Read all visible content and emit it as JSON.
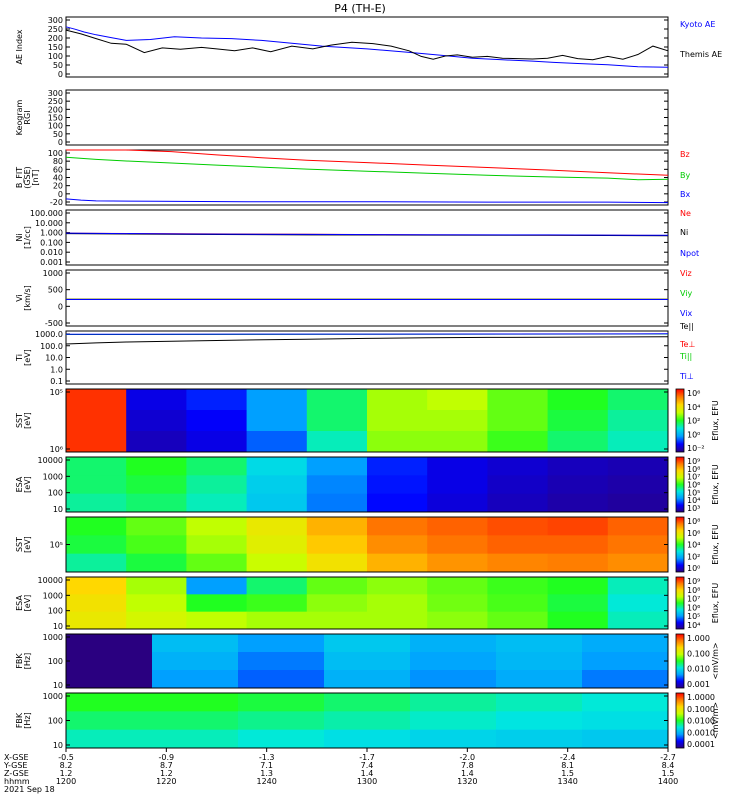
{
  "title": "P4 (TH-E)",
  "footer": {
    "row_labels": [
      "X-GSE",
      "Y-GSE",
      "Z-GSE",
      "hhmm",
      "2021 Sep 18"
    ],
    "columns": [
      {
        "x": "-0.5",
        "y": "8.2",
        "z": "1.2",
        "t": "1200"
      },
      {
        "x": "-0.9",
        "y": "8.7",
        "z": "1.2",
        "t": "1220"
      },
      {
        "x": "-1.3",
        "y": "7.1",
        "z": "1.3",
        "t": "1240"
      },
      {
        "x": "-1.7",
        "y": "7.4",
        "z": "1.4",
        "t": "1300"
      },
      {
        "x": "-2.0",
        "y": "7.8",
        "z": "1.4",
        "t": "1320"
      },
      {
        "x": "-2.4",
        "y": "8.1",
        "z": "1.5",
        "t": "1340"
      },
      {
        "x": "-2.7",
        "y": "8.4",
        "z": "1.5",
        "t": "1400"
      }
    ]
  },
  "colors": {
    "blue": "#0000ff",
    "black": "#000000",
    "red": "#ff0000",
    "green": "#00cc00",
    "cbar": [
      "#2a0080",
      "#0000ff",
      "#00a0ff",
      "#00e8e0",
      "#20ff20",
      "#c8ff00",
      "#ffd800",
      "#ff7a00",
      "#ff0000"
    ]
  },
  "chart_data": [
    {
      "type": "line",
      "ylabel": "AE Index",
      "yticks": [
        "300",
        "250",
        "200",
        "150",
        "100",
        "50",
        "0"
      ],
      "ylim": [
        0,
        320
      ],
      "legend": [
        "Kyoto AE",
        "Themis AE"
      ],
      "series": [
        {
          "name": "Kyoto AE",
          "x": [
            1200,
            1203,
            1206,
            1210,
            1215,
            1220,
            1228,
            1236,
            1245,
            1255,
            1265,
            1275,
            1285,
            1300,
            1315,
            1325,
            1335,
            1345,
            1355,
            1362,
            1370,
            1380,
            1390,
            1400
          ],
          "values": [
            268,
            255,
            240,
            225,
            210,
            195,
            200,
            215,
            208,
            205,
            195,
            180,
            165,
            150,
            130,
            115,
            100,
            92,
            85,
            78,
            72,
            65,
            55,
            52
          ]
        },
        {
          "name": "Themis AE",
          "x": [
            1200,
            1205,
            1210,
            1215,
            1220,
            1226,
            1232,
            1238,
            1245,
            1250,
            1256,
            1262,
            1268,
            1275,
            1282,
            1288,
            1295,
            1302,
            1308,
            1314,
            1318,
            1322,
            1326,
            1330,
            1335,
            1340,
            1345,
            1350,
            1355,
            1360,
            1365,
            1370,
            1375,
            1380,
            1385,
            1390,
            1395,
            1400
          ],
          "values": [
            250,
            230,
            205,
            180,
            175,
            130,
            155,
            148,
            158,
            150,
            140,
            155,
            135,
            165,
            150,
            170,
            185,
            178,
            165,
            140,
            110,
            95,
            112,
            118,
            105,
            110,
            100,
            98,
            96,
            100,
            115,
            98,
            92,
            110,
            95,
            120,
            165,
            140
          ]
        }
      ]
    },
    {
      "type": "heatmap",
      "ylabel": "Keogram",
      "ylabel2": "RGI",
      "yticks": [
        "300",
        "250",
        "200",
        "150",
        "100",
        "50",
        "0"
      ],
      "values": []
    },
    {
      "type": "line",
      "ylabel": "B_FIT",
      "ylabel2": "(GSE)",
      "ylabel3": "[nT]",
      "yticks": [
        "100",
        "80",
        "60",
        "40",
        "20",
        "0",
        "-20"
      ],
      "ylim": [
        -30,
        105
      ],
      "legend": [
        "Bz",
        "By",
        "Bx"
      ],
      "series": [
        {
          "name": "Bz",
          "x": [
            1200,
            1210,
            1220,
            1235,
            1250,
            1265,
            1280,
            1300,
            1320,
            1340,
            1360,
            1380,
            1400
          ],
          "values": [
            110,
            108,
            105,
            101,
            93,
            86,
            80,
            74,
            68,
            62,
            56,
            49,
            43
          ]
        },
        {
          "name": "By",
          "x": [
            1200,
            1210,
            1220,
            1235,
            1250,
            1265,
            1280,
            1300,
            1320,
            1340,
            1360,
            1380,
            1390,
            1400
          ],
          "values": [
            87,
            82,
            78,
            73,
            68,
            63,
            58,
            53,
            48,
            43,
            39,
            36,
            32,
            33
          ]
        },
        {
          "name": "Bx",
          "x": [
            1200,
            1205,
            1210,
            1230,
            1260,
            1300,
            1340,
            1380,
            1400
          ],
          "values": [
            -15,
            -18,
            -20,
            -21,
            -22,
            -22,
            -23,
            -23,
            -24
          ]
        }
      ]
    },
    {
      "type": "line",
      "ylabel": "Ni",
      "ylabel2": "[1/cc]",
      "yticks": [
        "100.000",
        "10.000",
        "1.000",
        "0.100",
        "0.010",
        "0.001"
      ],
      "ylim": [
        0.001,
        100
      ],
      "legend": [
        "Ne",
        "Ni",
        "Npot"
      ],
      "series": [
        {
          "name": "Ne",
          "x": [
            1200,
            1240,
            1280,
            1320,
            1360,
            1400
          ],
          "values": [
            0.78,
            0.68,
            0.62,
            0.55,
            0.52,
            0.48
          ]
        },
        {
          "name": "Ni",
          "x": [
            1200,
            1240,
            1280,
            1320,
            1360,
            1400
          ],
          "values": [
            0.72,
            0.6,
            0.55,
            0.52,
            0.5,
            0.46
          ]
        },
        {
          "name": "Npot",
          "x": [
            1200,
            1240,
            1280,
            1320,
            1360,
            1400
          ],
          "values": [
            0.8,
            0.66,
            0.6,
            0.56,
            0.54,
            0.5
          ]
        }
      ]
    },
    {
      "type": "line",
      "ylabel": "Vi",
      "ylabel2": "[km/s]",
      "yticks": [
        "1000",
        "500",
        "0",
        "-500"
      ],
      "ylim": [
        -1000,
        1100
      ],
      "legend": [
        "Viz",
        "Viy",
        "Vix"
      ],
      "series": [
        {
          "name": "Viz",
          "x": [
            1200,
            1300,
            1400
          ],
          "values": [
            10,
            10,
            10
          ]
        },
        {
          "name": "Viy",
          "x": [
            1200,
            1300,
            1400
          ],
          "values": [
            0,
            0,
            0
          ]
        },
        {
          "name": "Vix",
          "x": [
            1200,
            1300,
            1400
          ],
          "values": [
            -5,
            -5,
            -5
          ]
        }
      ]
    },
    {
      "type": "line",
      "ylabel": "Ti",
      "ylabel2": "[eV]",
      "yticks": [
        "1000.0",
        "100.0",
        "10.0",
        "1.0",
        "0.1"
      ],
      "ylim": [
        0.05,
        10000
      ],
      "legend": [
        "Te||",
        "Te⊥",
        "Ti||",
        "Ti⊥"
      ],
      "series": [
        {
          "name": "Te||",
          "x": [
            1200,
            1210,
            1220,
            1240,
            1260,
            1280,
            1300,
            1320,
            1340,
            1360,
            1380,
            1400
          ],
          "values": [
            500,
            650,
            800,
            1000,
            1250,
            1500,
            1800,
            2100,
            2300,
            2400,
            2500,
            2600
          ]
        },
        {
          "name": "Ti||",
          "x": [
            1200,
            1300,
            1400
          ],
          "values": [
            4500,
            4700,
            5000
          ]
        },
        {
          "name": "Ti⊥",
          "x": [
            1200,
            1300,
            1400
          ],
          "values": [
            4700,
            4900,
            5200
          ]
        }
      ]
    },
    {
      "type": "heatmap",
      "ylabel": "SST",
      "ylabel2": "[eV]",
      "yticks": [
        "10⁵",
        "10⁶"
      ],
      "cbar_label": "Eflux, EFU",
      "cbar_ticks": [
        "10⁶",
        "10⁴",
        "10²",
        "10⁰",
        "10⁻²"
      ],
      "values": [
        [
          0.95,
          0.1,
          0.15,
          0.25,
          0.45,
          0.6,
          0.62,
          0.55,
          0.5,
          0.45
        ],
        [
          0.95,
          0.08,
          0.12,
          0.25,
          0.45,
          0.6,
          0.6,
          0.55,
          0.48,
          0.42
        ],
        [
          0.95,
          0.06,
          0.1,
          0.2,
          0.4,
          0.58,
          0.58,
          0.52,
          0.45,
          0.4
        ]
      ]
    },
    {
      "type": "heatmap",
      "ylabel": "ESA",
      "ylabel2": "[eV]",
      "yticks": [
        "10000",
        "1000",
        "100",
        "10"
      ],
      "cbar_label": "Eflux, EFU",
      "cbar_ticks": [
        "10⁹",
        "10⁸",
        "10⁷",
        "10⁶",
        "10⁵",
        "10⁴",
        "10³"
      ],
      "values": [
        [
          0.45,
          0.5,
          0.45,
          0.35,
          0.25,
          0.15,
          0.1,
          0.08,
          0.06,
          0.05
        ],
        [
          0.45,
          0.48,
          0.42,
          0.33,
          0.23,
          0.14,
          0.1,
          0.07,
          0.05,
          0.04
        ],
        [
          0.42,
          0.45,
          0.4,
          0.32,
          0.22,
          0.13,
          0.09,
          0.06,
          0.04,
          0.03
        ]
      ]
    },
    {
      "type": "heatmap",
      "ylabel": "SST",
      "ylabel2": "[eV]",
      "yticks": [
        "10⁵"
      ],
      "cbar_label": "Eflux, EFU",
      "cbar_ticks": [
        "10⁸",
        "10⁶",
        "10⁴",
        "10²",
        "10⁰"
      ],
      "values": [
        [
          0.5,
          0.55,
          0.62,
          0.7,
          0.8,
          0.88,
          0.9,
          0.92,
          0.93,
          0.9
        ],
        [
          0.48,
          0.53,
          0.6,
          0.68,
          0.77,
          0.85,
          0.88,
          0.9,
          0.9,
          0.88
        ],
        [
          0.42,
          0.48,
          0.55,
          0.63,
          0.72,
          0.8,
          0.84,
          0.86,
          0.87,
          0.85
        ]
      ]
    },
    {
      "type": "heatmap",
      "ylabel": "ESA",
      "ylabel2": "[eV]",
      "yticks": [
        "10000",
        "1000",
        "100",
        "10"
      ],
      "cbar_label": "Eflux, EFU",
      "cbar_ticks": [
        "10⁹",
        "10⁸",
        "10⁷",
        "10⁶",
        "10⁵",
        "10⁴"
      ],
      "values": [
        [
          0.75,
          0.6,
          0.25,
          0.45,
          0.55,
          0.58,
          0.55,
          0.52,
          0.5,
          0.4
        ],
        [
          0.72,
          0.62,
          0.5,
          0.52,
          0.58,
          0.6,
          0.56,
          0.53,
          0.48,
          0.38
        ],
        [
          0.7,
          0.65,
          0.62,
          0.6,
          0.6,
          0.6,
          0.58,
          0.55,
          0.5,
          0.4
        ]
      ]
    },
    {
      "type": "heatmap",
      "ylabel": "FBK",
      "ylabel2": "[Hz]",
      "yticks": [
        "1000",
        "100",
        "10"
      ],
      "cbar_label": "<mV/m>",
      "cbar_ticks": [
        "1.000",
        "0.100",
        "0.010",
        "0.001"
      ],
      "values": [
        [
          0.0,
          0.3,
          0.25,
          0.32,
          0.28,
          0.3,
          0.27
        ],
        [
          0.0,
          0.28,
          0.22,
          0.3,
          0.26,
          0.29,
          0.25
        ],
        [
          0.0,
          0.25,
          0.2,
          0.28,
          0.24,
          0.27,
          0.22
        ]
      ]
    },
    {
      "type": "heatmap",
      "ylabel": "FBK",
      "ylabel2": "[Hz]",
      "yticks": [
        "1000",
        "100",
        "10"
      ],
      "cbar_label": "<mV/m>",
      "cbar_ticks": [
        "1.0000",
        "0.1000",
        "0.0100",
        "0.0010",
        "0.0001"
      ],
      "values": [
        [
          0.5,
          0.5,
          0.48,
          0.45,
          0.42,
          0.4,
          0.38
        ],
        [
          0.45,
          0.45,
          0.43,
          0.41,
          0.39,
          0.37,
          0.36
        ],
        [
          0.4,
          0.4,
          0.38,
          0.36,
          0.34,
          0.33,
          0.32
        ]
      ]
    }
  ]
}
